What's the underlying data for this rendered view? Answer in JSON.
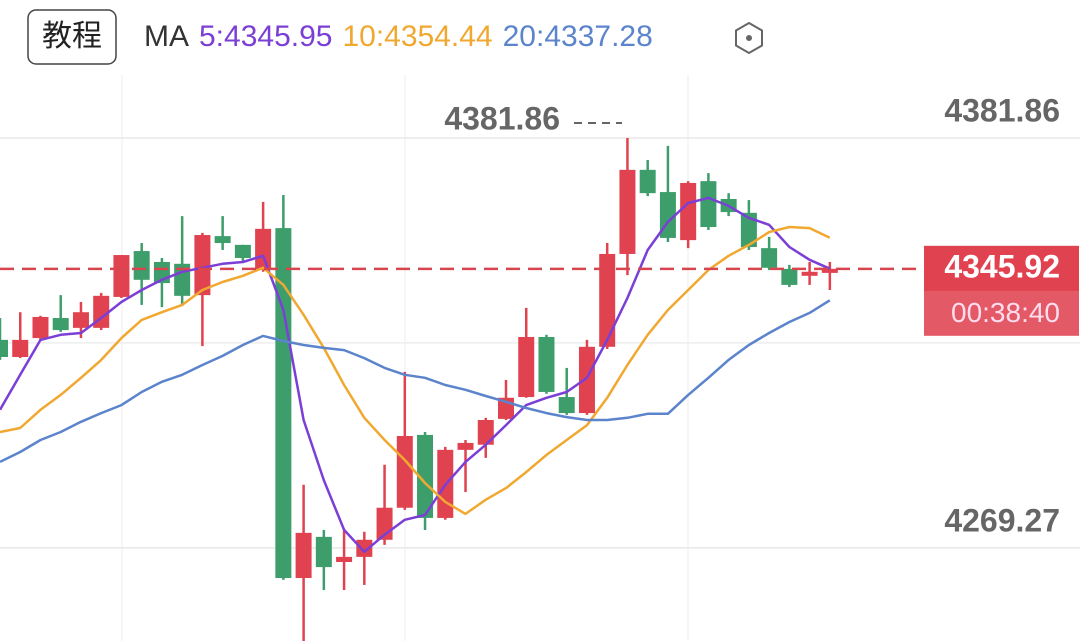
{
  "toolbar": {
    "button": "教程",
    "indicator": "MA"
  },
  "chart_data": {
    "type": "candlestick",
    "up_color": "#e0424f",
    "down_color": "#3d9e6b",
    "open": [
      4326.4,
      4321.7,
      4326.9,
      4332.4,
      4329.7,
      4329.7,
      4338.2,
      4350.8,
      4347.8,
      4347.3,
      4338.7,
      4354.9,
      4352.5,
      4345.6,
      4357.1,
      4261.0,
      4272.3,
      4265.4,
      4266.8,
      4271.5,
      4280.3,
      4300.3,
      4277.5,
      4296.2,
      4297.6,
      4304.7,
      4310.7,
      4327.2,
      4310.7,
      4306.3,
      4324.5,
      4350.0,
      4373.1,
      4367.0,
      4353.8,
      4370.0,
      4365.1,
      4361.3,
      4351.6,
      4345.9,
      4344.0,
      4344.8
    ],
    "high": [
      4332.4,
      4334.0,
      4333.0,
      4338.7,
      4336.8,
      4339.3,
      4349.7,
      4353.0,
      4348.9,
      4360.4,
      4355.8,
      4360.4,
      4352.5,
      4364.3,
      4366.2,
      4286.6,
      4274.2,
      4274.2,
      4273.7,
      4292.1,
      4317.6,
      4301.1,
      4297.0,
      4298.9,
      4305.0,
      4315.4,
      4335.2,
      4327.8,
      4318.7,
      4326.4,
      4353.0,
      4381.86,
      4375.8,
      4379.7,
      4370.0,
      4372.2,
      4366.7,
      4364.8,
      4354.7,
      4347.0,
      4347.8,
      4347.8
    ],
    "low": [
      4320.9,
      4321.4,
      4326.4,
      4328.6,
      4326.9,
      4329.1,
      4337.9,
      4336.0,
      4335.4,
      4335.7,
      4324.7,
      4351.1,
      4347.8,
      4345.1,
      4260.5,
      4243.7,
      4257.7,
      4257.7,
      4259.1,
      4270.1,
      4279.7,
      4274.2,
      4277.0,
      4284.6,
      4294.0,
      4304.4,
      4310.5,
      4311.6,
      4305.8,
      4305.8,
      4323.9,
      4344.2,
      4365.9,
      4353.3,
      4351.6,
      4356.6,
      4360.4,
      4351.1,
      4345.6,
      4340.9,
      4341.5,
      4340.1
    ],
    "close": [
      4321.7,
      4326.4,
      4332.7,
      4329.1,
      4334.0,
      4338.5,
      4349.7,
      4342.9,
      4342.0,
      4338.5,
      4355.2,
      4353.0,
      4348.9,
      4356.9,
      4261.0,
      4273.4,
      4264.0,
      4266.8,
      4271.5,
      4280.3,
      4300.0,
      4277.5,
      4296.2,
      4298.1,
      4304.4,
      4310.5,
      4327.2,
      4312.1,
      4306.3,
      4324.5,
      4350.0,
      4373.1,
      4366.7,
      4354.4,
      4369.5,
      4357.4,
      4361.5,
      4351.9,
      4346.2,
      4341.5,
      4345.1,
      4345.92
    ],
    "series": [
      {
        "name": "5:4345.95",
        "color": "#7b3fd6",
        "values": [
          4307.2,
          4316.8,
          4326.4,
          4327.8,
          4328.3,
          4332.4,
          4336.8,
          4340.1,
          4342.9,
          4345.1,
          4346.2,
          4347.3,
          4347.8,
          4349.5,
          4334.6,
          4304.4,
          4287.9,
          4274.2,
          4268.2,
          4272.9,
          4277.0,
          4278.3,
          4286.6,
          4292.9,
          4297.6,
          4303.0,
          4308.5,
          4310.5,
          4312.1,
          4316.0,
          4326.4,
          4337.9,
          4351.1,
          4358.8,
          4364.0,
          4365.4,
          4363.2,
          4359.9,
          4358.0,
          4351.9,
          4348.4,
          4345.95
        ]
      },
      {
        "name": "10:4354.44",
        "color": "#f0a830",
        "values": [
          4301.1,
          4302.2,
          4307.2,
          4311.3,
          4316.0,
          4320.9,
          4326.9,
          4331.9,
          4334.0,
          4336.0,
          4340.1,
          4342.3,
          4344.0,
          4346.2,
          4341.5,
          4333.3,
          4324.2,
          4314.0,
          4305.0,
          4298.9,
          4293.4,
          4287.1,
          4281.9,
          4278.6,
          4282.5,
          4285.7,
          4290.1,
          4294.8,
          4298.9,
          4303.0,
          4310.5,
          4319.5,
          4327.8,
          4334.6,
          4340.1,
          4345.6,
          4349.5,
          4352.5,
          4356.0,
          4357.4,
          4357.1,
          4354.44
        ]
      },
      {
        "name": "20:4337.28",
        "color": "#5b84cc",
        "values": [
          4292.9,
          4295.6,
          4298.9,
          4301.1,
          4303.9,
          4306.3,
          4308.5,
          4312.1,
          4314.9,
          4316.8,
          4319.5,
          4322.0,
          4325.0,
          4327.5,
          4326.1,
          4325.0,
          4324.2,
          4323.6,
          4321.4,
          4318.7,
          4316.8,
          4316.0,
          4314.0,
          4312.7,
          4311.0,
          4309.4,
          4307.7,
          4306.3,
          4305.2,
          4304.4,
          4304.4,
          4305.0,
          4306.1,
          4306.1,
          4311.3,
          4316.0,
          4320.9,
          4325.0,
          4328.3,
          4331.3,
          4333.8,
          4337.28
        ]
      }
    ],
    "ylim": [
      4243.7,
      4419.75
    ],
    "yticks": [
      4381.86,
      4269.27
    ],
    "grid": true,
    "countdown": "00:38:40"
  }
}
